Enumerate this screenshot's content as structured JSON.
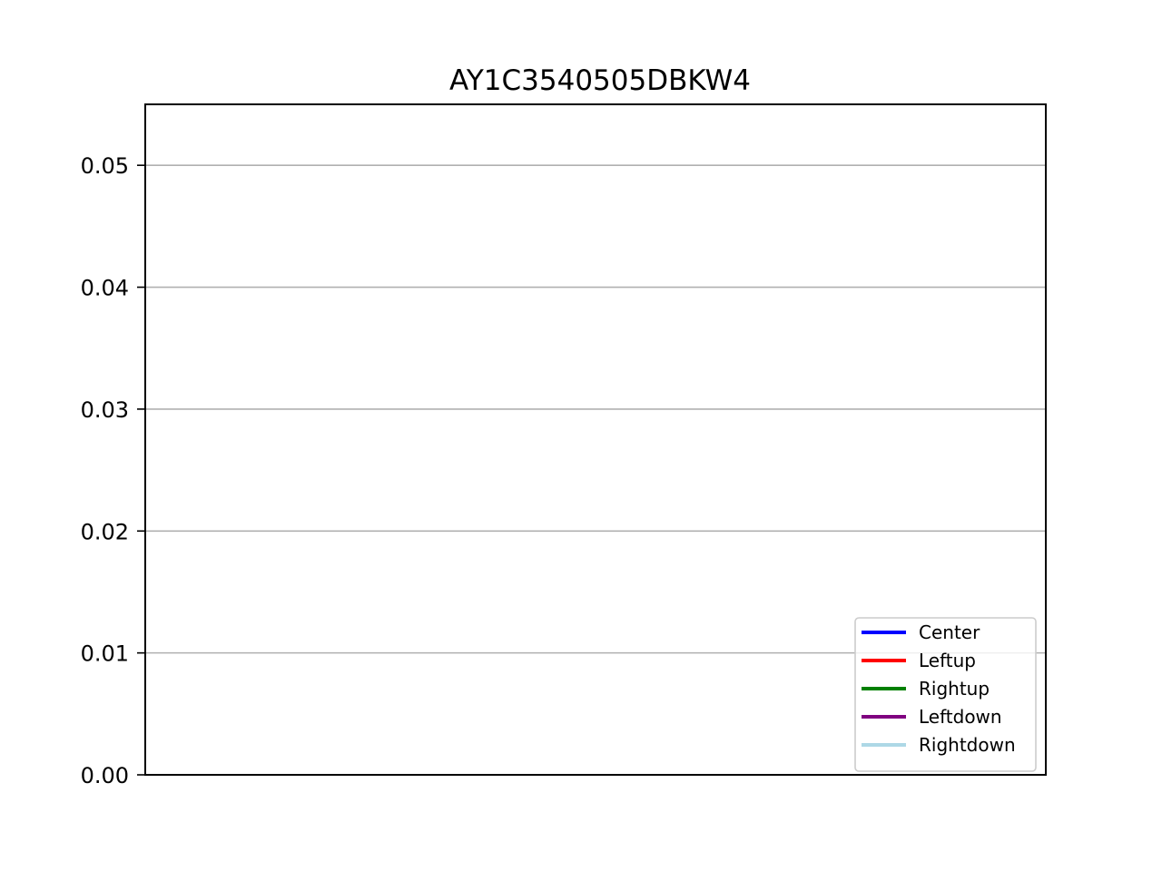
{
  "chart_data": {
    "type": "line",
    "title": "AY1C3540505DBKW4",
    "xlabel": "",
    "ylabel": "",
    "ylim": [
      0,
      0.055
    ],
    "yticks": [
      0.0,
      0.01,
      0.02,
      0.03,
      0.04,
      0.05
    ],
    "ytick_labels": [
      "0.00",
      "0.01",
      "0.02",
      "0.03",
      "0.04",
      "0.05"
    ],
    "grid": "horizontal",
    "legend_position": "lower-right",
    "series": [
      {
        "name": "Center",
        "color": "#0000ff",
        "values": []
      },
      {
        "name": "Leftup",
        "color": "#ff0000",
        "values": []
      },
      {
        "name": "Rightup",
        "color": "#008000",
        "values": []
      },
      {
        "name": "Leftdown",
        "color": "#800080",
        "values": []
      },
      {
        "name": "Rightdown",
        "color": "#add8e6",
        "values": []
      }
    ]
  }
}
